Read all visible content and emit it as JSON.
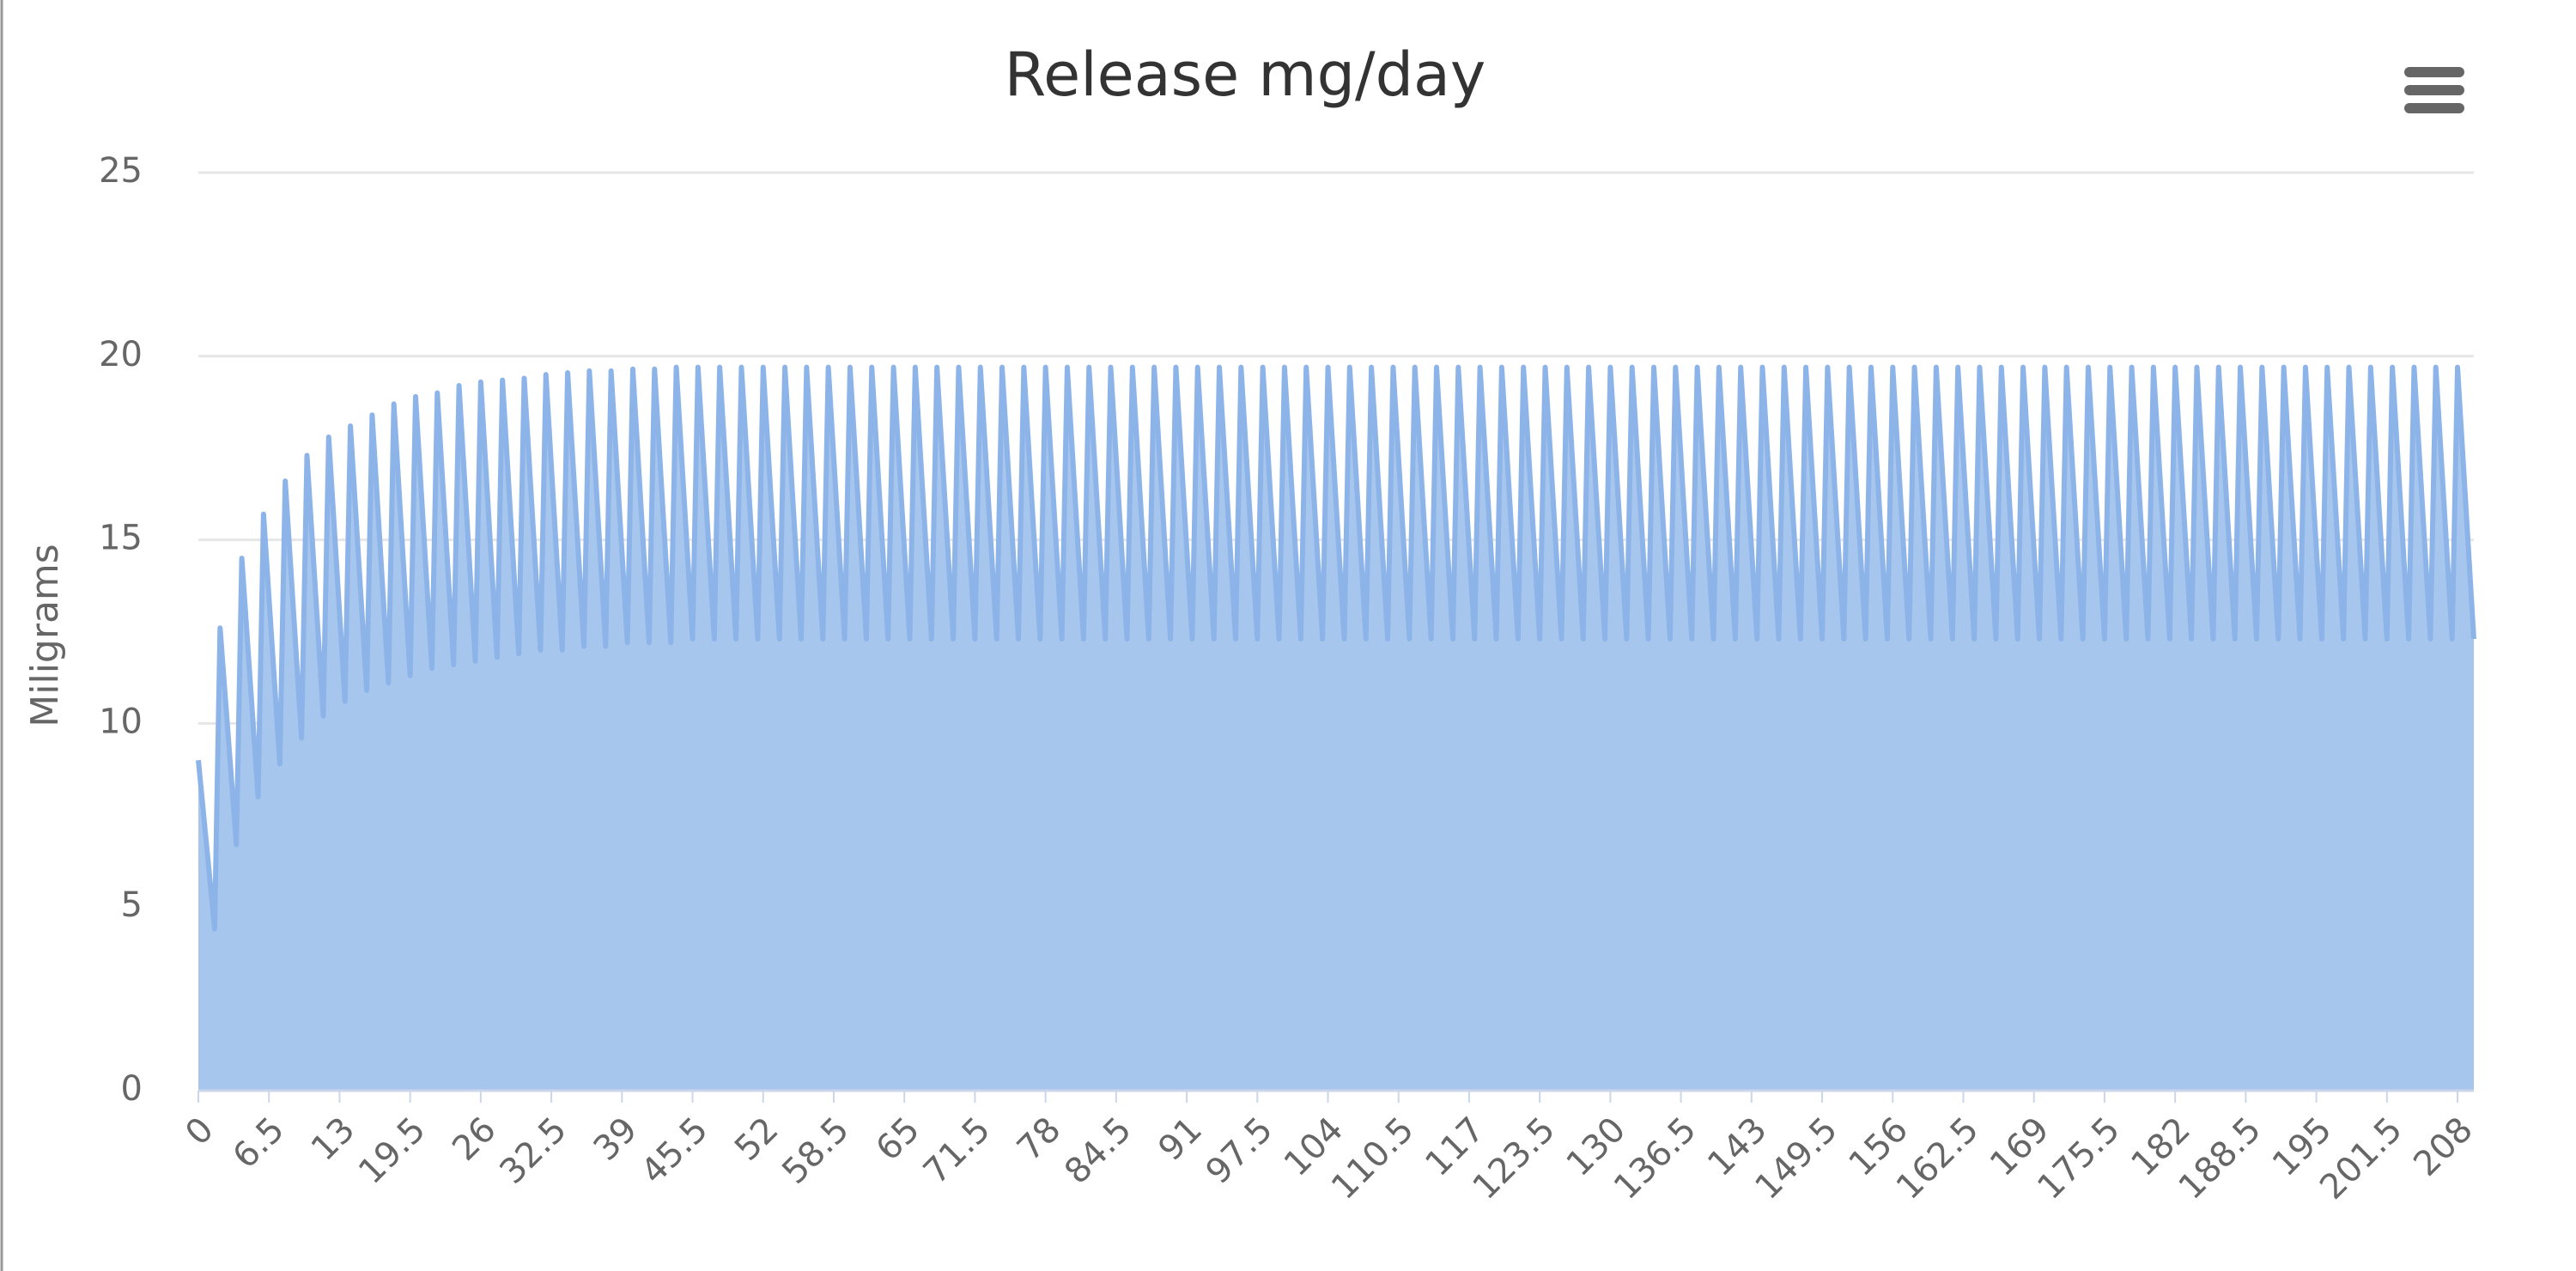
{
  "chart_data": {
    "type": "area",
    "title": "Release mg/day",
    "y_label": "Miligrams",
    "color": "#8db4e8",
    "fill": "#a7c6ee",
    "x": [
      0,
      1.5,
      2,
      3.5,
      4,
      5.5,
      6,
      7.5,
      8,
      9.5,
      10,
      11.5,
      12,
      13.5,
      14,
      15.5,
      16,
      17.5,
      18,
      19.5,
      20,
      21.5,
      22,
      23.5,
      24,
      25.5,
      26,
      27.5,
      28,
      29.5,
      30,
      31.5,
      32,
      33.5,
      34,
      35.5,
      36,
      37.5,
      38,
      39.5,
      40,
      41.5,
      42,
      43.5,
      44,
      45.5,
      46,
      47.5,
      48,
      49.5,
      50,
      51.5,
      52,
      53.5,
      54,
      55.5,
      56,
      57.5,
      58,
      59.5,
      60,
      61.5,
      62,
      63.5,
      64,
      65.5,
      66,
      67.5,
      68,
      69.5,
      70,
      71.5,
      72,
      73.5,
      74,
      75.5,
      76,
      77.5,
      78,
      79.5,
      80,
      81.5,
      82,
      83.5,
      84,
      85.5,
      86,
      87.5,
      88,
      89.5,
      90,
      91.5,
      92,
      93.5,
      94,
      95.5,
      96,
      97.5,
      98,
      99.5,
      100,
      101.5,
      102,
      103.5,
      104,
      105.5,
      106,
      107.5,
      108,
      109.5,
      110,
      111.5,
      112,
      113.5,
      114,
      115.5,
      116,
      117.5,
      118,
      119.5,
      120,
      121.5,
      122,
      123.5,
      124,
      125.5,
      126,
      127.5,
      128,
      129.5,
      130,
      131.5,
      132,
      133.5,
      134,
      135.5,
      136,
      137.5,
      138,
      139.5,
      140,
      141.5,
      142,
      143.5,
      144,
      145.5,
      146,
      147.5,
      148,
      149.5,
      150,
      151.5,
      152,
      153.5,
      154,
      155.5,
      156,
      157.5,
      158,
      159.5,
      160,
      161.5,
      162,
      163.5,
      164,
      165.5,
      166,
      167.5,
      168,
      169.5,
      170,
      171.5,
      172,
      173.5,
      174,
      175.5,
      176,
      177.5,
      178,
      179.5,
      180,
      181.5,
      182,
      183.5,
      184,
      185.5,
      186,
      187.5,
      188,
      189.5,
      190,
      191.5,
      192,
      193.5,
      194,
      195.5,
      196,
      197.5,
      198,
      199.5,
      200,
      201.5,
      202,
      203.5,
      204,
      205.5,
      206,
      207.5,
      208,
      209.5
    ],
    "values": [
      9,
      4.4,
      12.6,
      6.7,
      14.5,
      8.0,
      15.7,
      8.9,
      16.6,
      9.6,
      17.3,
      10.2,
      17.8,
      10.6,
      18.1,
      10.9,
      18.4,
      11.1,
      18.7,
      11.3,
      18.9,
      11.5,
      19.0,
      11.6,
      19.2,
      11.7,
      19.3,
      11.8,
      19.35,
      11.9,
      19.4,
      12.0,
      19.5,
      12.0,
      19.55,
      12.1,
      19.6,
      12.1,
      19.6,
      12.2,
      19.65,
      12.2,
      19.65,
      12.2,
      19.7,
      12.3,
      19.7,
      12.3,
      19.7,
      12.3,
      19.7,
      12.3,
      19.7,
      12.3,
      19.7,
      12.3,
      19.7,
      12.3,
      19.7,
      12.3,
      19.7,
      12.3,
      19.7,
      12.3,
      19.7,
      12.3,
      19.7,
      12.3,
      19.7,
      12.3,
      19.7,
      12.3,
      19.7,
      12.3,
      19.7,
      12.3,
      19.7,
      12.3,
      19.7,
      12.3,
      19.7,
      12.3,
      19.7,
      12.3,
      19.7,
      12.3,
      19.7,
      12.3,
      19.7,
      12.3,
      19.7,
      12.3,
      19.7,
      12.3,
      19.7,
      12.3,
      19.7,
      12.3,
      19.7,
      12.3,
      19.7,
      12.3,
      19.7,
      12.3,
      19.7,
      12.3,
      19.7,
      12.3,
      19.7,
      12.3,
      19.7,
      12.3,
      19.7,
      12.3,
      19.7,
      12.3,
      19.7,
      12.3,
      19.7,
      12.3,
      19.7,
      12.3,
      19.7,
      12.3,
      19.7,
      12.3,
      19.7,
      12.3,
      19.7,
      12.3,
      19.7,
      12.3,
      19.7,
      12.3,
      19.7,
      12.3,
      19.7,
      12.3,
      19.7,
      12.3,
      19.7,
      12.3,
      19.7,
      12.3,
      19.7,
      12.3,
      19.7,
      12.3,
      19.7,
      12.3,
      19.7,
      12.3,
      19.7,
      12.3,
      19.7,
      12.3,
      19.7,
      12.3,
      19.7,
      12.3,
      19.7,
      12.3,
      19.7,
      12.3,
      19.7,
      12.3,
      19.7,
      12.3,
      19.7,
      12.3,
      19.7,
      12.3,
      19.7,
      12.3,
      19.7,
      12.3,
      19.7,
      12.3,
      19.7,
      12.3,
      19.7,
      12.3,
      19.7,
      12.3,
      19.7,
      12.3,
      19.7,
      12.3,
      19.7,
      12.3,
      19.7,
      12.3,
      19.7,
      12.3,
      19.7,
      12.3,
      19.7,
      12.3,
      19.7,
      12.3,
      19.7,
      12.3,
      19.7,
      12.3,
      19.7,
      12.3,
      19.7,
      12.3,
      19.7,
      12.3
    ],
    "xlim": [
      0,
      209.5
    ],
    "xticks": [
      0,
      6.5,
      13,
      19.5,
      26,
      32.5,
      39,
      45.5,
      52,
      58.5,
      65,
      71.5,
      78,
      84.5,
      91,
      97.5,
      104,
      110.5,
      117,
      123.5,
      130,
      136.5,
      143,
      149.5,
      156,
      162.5,
      169,
      175.5,
      182,
      188.5,
      195,
      201.5,
      208
    ],
    "ylim": [
      0,
      25
    ],
    "yticks": [
      0,
      5,
      10,
      15,
      20,
      25
    ],
    "grid": true
  }
}
